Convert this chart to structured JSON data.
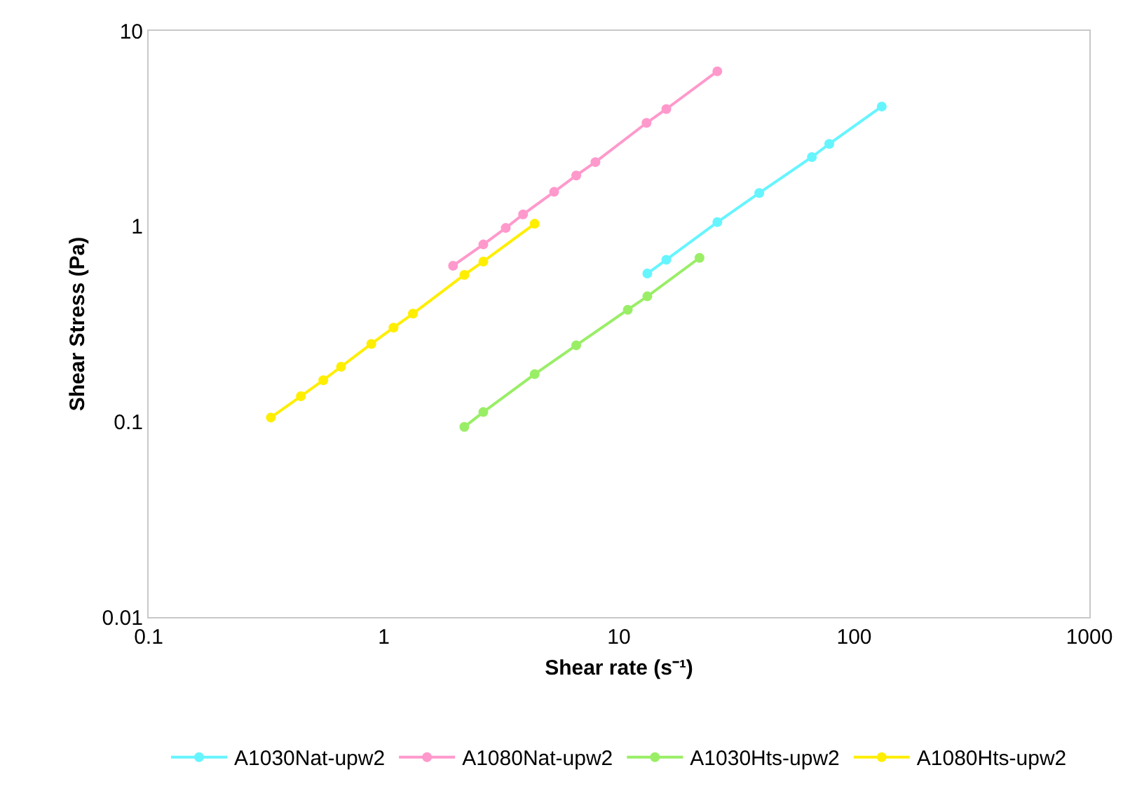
{
  "chart_data": {
    "type": "line",
    "xlabel": "Shear rate (s⁻¹)",
    "ylabel": "Shear Stress (Pa)",
    "log": "xy",
    "grid": false,
    "legend": "bottom",
    "marker": "circle",
    "line_style": "solid",
    "xlim": [
      0.1,
      1000
    ],
    "xticks": [
      0.1,
      1,
      10,
      100,
      1000
    ],
    "ylim": [
      0.01,
      10
    ],
    "yticks": [
      0.01,
      0.1,
      1,
      10
    ],
    "series": [
      {
        "name": "A1030Nat-upw2",
        "color": "#66f5ff",
        "x": [
          13.2,
          15.9,
          26.2,
          39.5,
          66.1,
          78.4,
          131
        ],
        "values": [
          0.573,
          0.674,
          1.05,
          1.48,
          2.26,
          2.64,
          4.1
        ]
      },
      {
        "name": "A1080Nat-upw2",
        "color": "#ff99cc",
        "x": [
          1.97,
          2.65,
          3.3,
          3.91,
          5.3,
          6.58,
          7.94,
          13.1,
          15.9,
          26.2
        ],
        "values": [
          0.628,
          0.807,
          0.98,
          1.15,
          1.5,
          1.82,
          2.13,
          3.38,
          3.98,
          6.21
        ]
      },
      {
        "name": "A1030Hts-upw2",
        "color": "#99ee66",
        "x": [
          2.2,
          2.65,
          4.38,
          6.58,
          10.9,
          13.2,
          22.0
        ],
        "values": [
          0.094,
          0.112,
          0.175,
          0.246,
          0.374,
          0.438,
          0.689
        ]
      },
      {
        "name": "A1080Hts-upw2",
        "color": "#ffee00",
        "x": [
          0.331,
          0.444,
          0.553,
          0.658,
          0.885,
          1.1,
          1.33,
          2.2,
          2.65,
          4.38
        ],
        "values": [
          0.105,
          0.135,
          0.163,
          0.191,
          0.25,
          0.303,
          0.357,
          0.564,
          0.66,
          1.03
        ]
      }
    ]
  }
}
